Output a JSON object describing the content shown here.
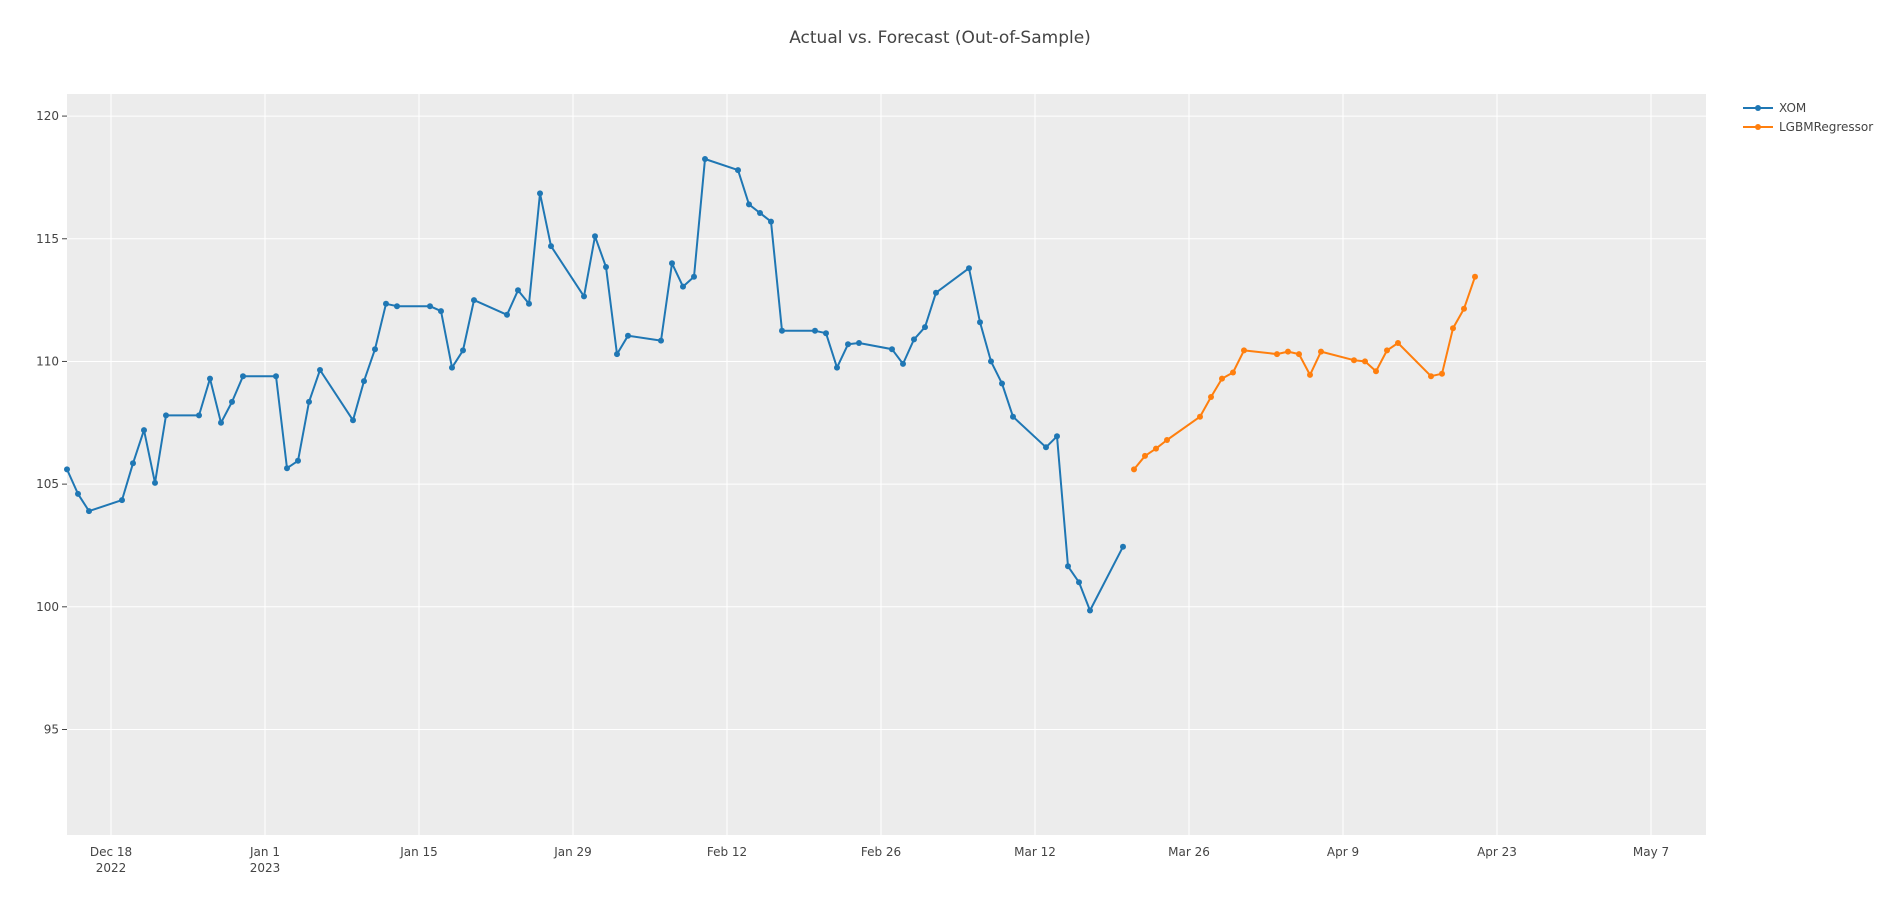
{
  "chart_data": {
    "type": "line",
    "title": "Actual vs. Forecast (Out-of-Sample)",
    "xlabel": "",
    "ylabel": "",
    "x_range": [
      "2022-12-14",
      "2023-05-12"
    ],
    "ylim": [
      90.7,
      120.9
    ],
    "y_ticks": [
      95,
      100,
      105,
      110,
      115,
      120
    ],
    "x_ticks": [
      {
        "date": "2022-12-18",
        "label": "Dec 18",
        "sublabel": "2022"
      },
      {
        "date": "2023-01-01",
        "label": "Jan 1",
        "sublabel": "2023"
      },
      {
        "date": "2023-01-15",
        "label": "Jan 15",
        "sublabel": ""
      },
      {
        "date": "2023-01-29",
        "label": "Jan 29",
        "sublabel": ""
      },
      {
        "date": "2023-02-12",
        "label": "Feb 12",
        "sublabel": ""
      },
      {
        "date": "2023-02-26",
        "label": "Feb 26",
        "sublabel": ""
      },
      {
        "date": "2023-03-12",
        "label": "Mar 12",
        "sublabel": ""
      },
      {
        "date": "2023-03-26",
        "label": "Mar 26",
        "sublabel": ""
      },
      {
        "date": "2023-04-09",
        "label": "Apr 9",
        "sublabel": ""
      },
      {
        "date": "2023-04-23",
        "label": "Apr 23",
        "sublabel": ""
      },
      {
        "date": "2023-05-07",
        "label": "May 7",
        "sublabel": ""
      }
    ],
    "grid": true,
    "legend_position": "top-right",
    "series": [
      {
        "name": "XOM",
        "color": "#1f77b4",
        "points": [
          [
            "2022-12-14",
            105.6
          ],
          [
            "2022-12-15",
            104.6
          ],
          [
            "2022-12-16",
            103.9
          ],
          [
            "2022-12-19",
            104.35
          ],
          [
            "2022-12-20",
            105.85
          ],
          [
            "2022-12-21",
            107.2
          ],
          [
            "2022-12-22",
            105.05
          ],
          [
            "2022-12-23",
            107.8
          ],
          [
            "2022-12-26",
            107.8
          ],
          [
            "2022-12-27",
            109.3
          ],
          [
            "2022-12-28",
            107.5
          ],
          [
            "2022-12-29",
            108.35
          ],
          [
            "2022-12-30",
            109.4
          ],
          [
            "2023-01-02",
            109.4
          ],
          [
            "2023-01-03",
            105.65
          ],
          [
            "2023-01-04",
            105.95
          ],
          [
            "2023-01-05",
            108.35
          ],
          [
            "2023-01-06",
            109.65
          ],
          [
            "2023-01-09",
            107.6
          ],
          [
            "2023-01-10",
            109.2
          ],
          [
            "2023-01-11",
            110.5
          ],
          [
            "2023-01-12",
            112.35
          ],
          [
            "2023-01-13",
            112.25
          ],
          [
            "2023-01-16",
            112.25
          ],
          [
            "2023-01-17",
            112.05
          ],
          [
            "2023-01-18",
            109.75
          ],
          [
            "2023-01-19",
            110.45
          ],
          [
            "2023-01-20",
            112.5
          ],
          [
            "2023-01-23",
            111.9
          ],
          [
            "2023-01-24",
            112.9
          ],
          [
            "2023-01-25",
            112.35
          ],
          [
            "2023-01-26",
            116.85
          ],
          [
            "2023-01-27",
            114.7
          ],
          [
            "2023-01-30",
            112.65
          ],
          [
            "2023-01-31",
            115.1
          ],
          [
            "2023-02-01",
            113.85
          ],
          [
            "2023-02-02",
            110.3
          ],
          [
            "2023-02-03",
            111.05
          ],
          [
            "2023-02-06",
            110.85
          ],
          [
            "2023-02-07",
            114.0
          ],
          [
            "2023-02-08",
            113.05
          ],
          [
            "2023-02-09",
            113.45
          ],
          [
            "2023-02-10",
            118.25
          ],
          [
            "2023-02-13",
            117.8
          ],
          [
            "2023-02-14",
            116.4
          ],
          [
            "2023-02-15",
            116.05
          ],
          [
            "2023-02-16",
            115.7
          ],
          [
            "2023-02-17",
            111.25
          ],
          [
            "2023-02-20",
            111.25
          ],
          [
            "2023-02-21",
            111.15
          ],
          [
            "2023-02-22",
            109.75
          ],
          [
            "2023-02-23",
            110.7
          ],
          [
            "2023-02-24",
            110.75
          ],
          [
            "2023-02-27",
            110.5
          ],
          [
            "2023-02-28",
            109.9
          ],
          [
            "2023-03-01",
            110.9
          ],
          [
            "2023-03-02",
            111.4
          ],
          [
            "2023-03-03",
            112.8
          ],
          [
            "2023-03-06",
            113.8
          ],
          [
            "2023-03-07",
            111.6
          ],
          [
            "2023-03-08",
            110.0
          ],
          [
            "2023-03-09",
            109.1
          ],
          [
            "2023-03-10",
            107.75
          ],
          [
            "2023-03-13",
            106.5
          ],
          [
            "2023-03-14",
            106.95
          ],
          [
            "2023-03-15",
            101.65
          ],
          [
            "2023-03-16",
            101.0
          ],
          [
            "2023-03-17",
            99.85
          ],
          [
            "2023-03-20",
            102.45
          ]
        ]
      },
      {
        "name": "LGBMRegressor",
        "color": "#ff7f0e",
        "points": [
          [
            "2023-03-21",
            105.6
          ],
          [
            "2023-03-22",
            106.15
          ],
          [
            "2023-03-23",
            106.45
          ],
          [
            "2023-03-24",
            106.8
          ],
          [
            "2023-03-27",
            107.75
          ],
          [
            "2023-03-28",
            108.55
          ],
          [
            "2023-03-29",
            109.3
          ],
          [
            "2023-03-30",
            109.55
          ],
          [
            "2023-03-31",
            110.45
          ],
          [
            "2023-04-03",
            110.3
          ],
          [
            "2023-04-04",
            110.4
          ],
          [
            "2023-04-05",
            110.3
          ],
          [
            "2023-04-06",
            109.45
          ],
          [
            "2023-04-07",
            110.4
          ],
          [
            "2023-04-10",
            110.05
          ],
          [
            "2023-04-11",
            110.0
          ],
          [
            "2023-04-12",
            109.6
          ],
          [
            "2023-04-13",
            110.45
          ],
          [
            "2023-04-14",
            110.75
          ],
          [
            "2023-04-17",
            109.4
          ],
          [
            "2023-04-18",
            109.5
          ],
          [
            "2023-04-19",
            111.35
          ],
          [
            "2023-04-20",
            112.15
          ],
          [
            "2023-04-21",
            113.45
          ]
        ]
      }
    ]
  }
}
